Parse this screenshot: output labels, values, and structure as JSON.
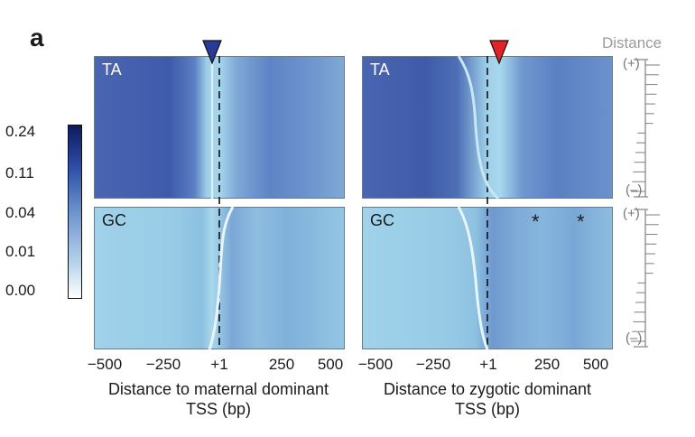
{
  "panel_letter": "a",
  "colorbar": {
    "ticks": [
      "0.24",
      "0.11",
      "0.04",
      "0.01",
      "0.00"
    ],
    "colors": [
      "#0d1a5e",
      "#2f4fa8",
      "#6c93cc",
      "#b7d3ec",
      "#ffffff"
    ]
  },
  "chart_data": [
    {
      "type": "heatmap",
      "panel": "left",
      "rows": [
        "TA",
        "GC"
      ],
      "x_ticks": [
        "−500",
        "−250",
        "+1",
        "250",
        "500"
      ],
      "xlim": [
        -500,
        500
      ],
      "marker": {
        "color": "#2b3a98",
        "x": 1
      },
      "xlabel_line1": "Distance to maternal dominant",
      "xlabel_line2": "TSS (bp)"
    },
    {
      "type": "heatmap",
      "panel": "right",
      "rows": [
        "TA",
        "GC"
      ],
      "x_ticks": [
        "−500",
        "−250",
        "+1",
        "250",
        "500"
      ],
      "xlim": [
        -500,
        500
      ],
      "marker": {
        "color": "#e32228",
        "x": 1
      },
      "annotations": [
        "*",
        "*"
      ],
      "xlabel_line1": "Distance to zygotic dominant",
      "xlabel_line2": "TSS (bp)"
    }
  ],
  "distance_axis": {
    "title": "Distance",
    "plus": "(+)",
    "minus": "(–)"
  }
}
